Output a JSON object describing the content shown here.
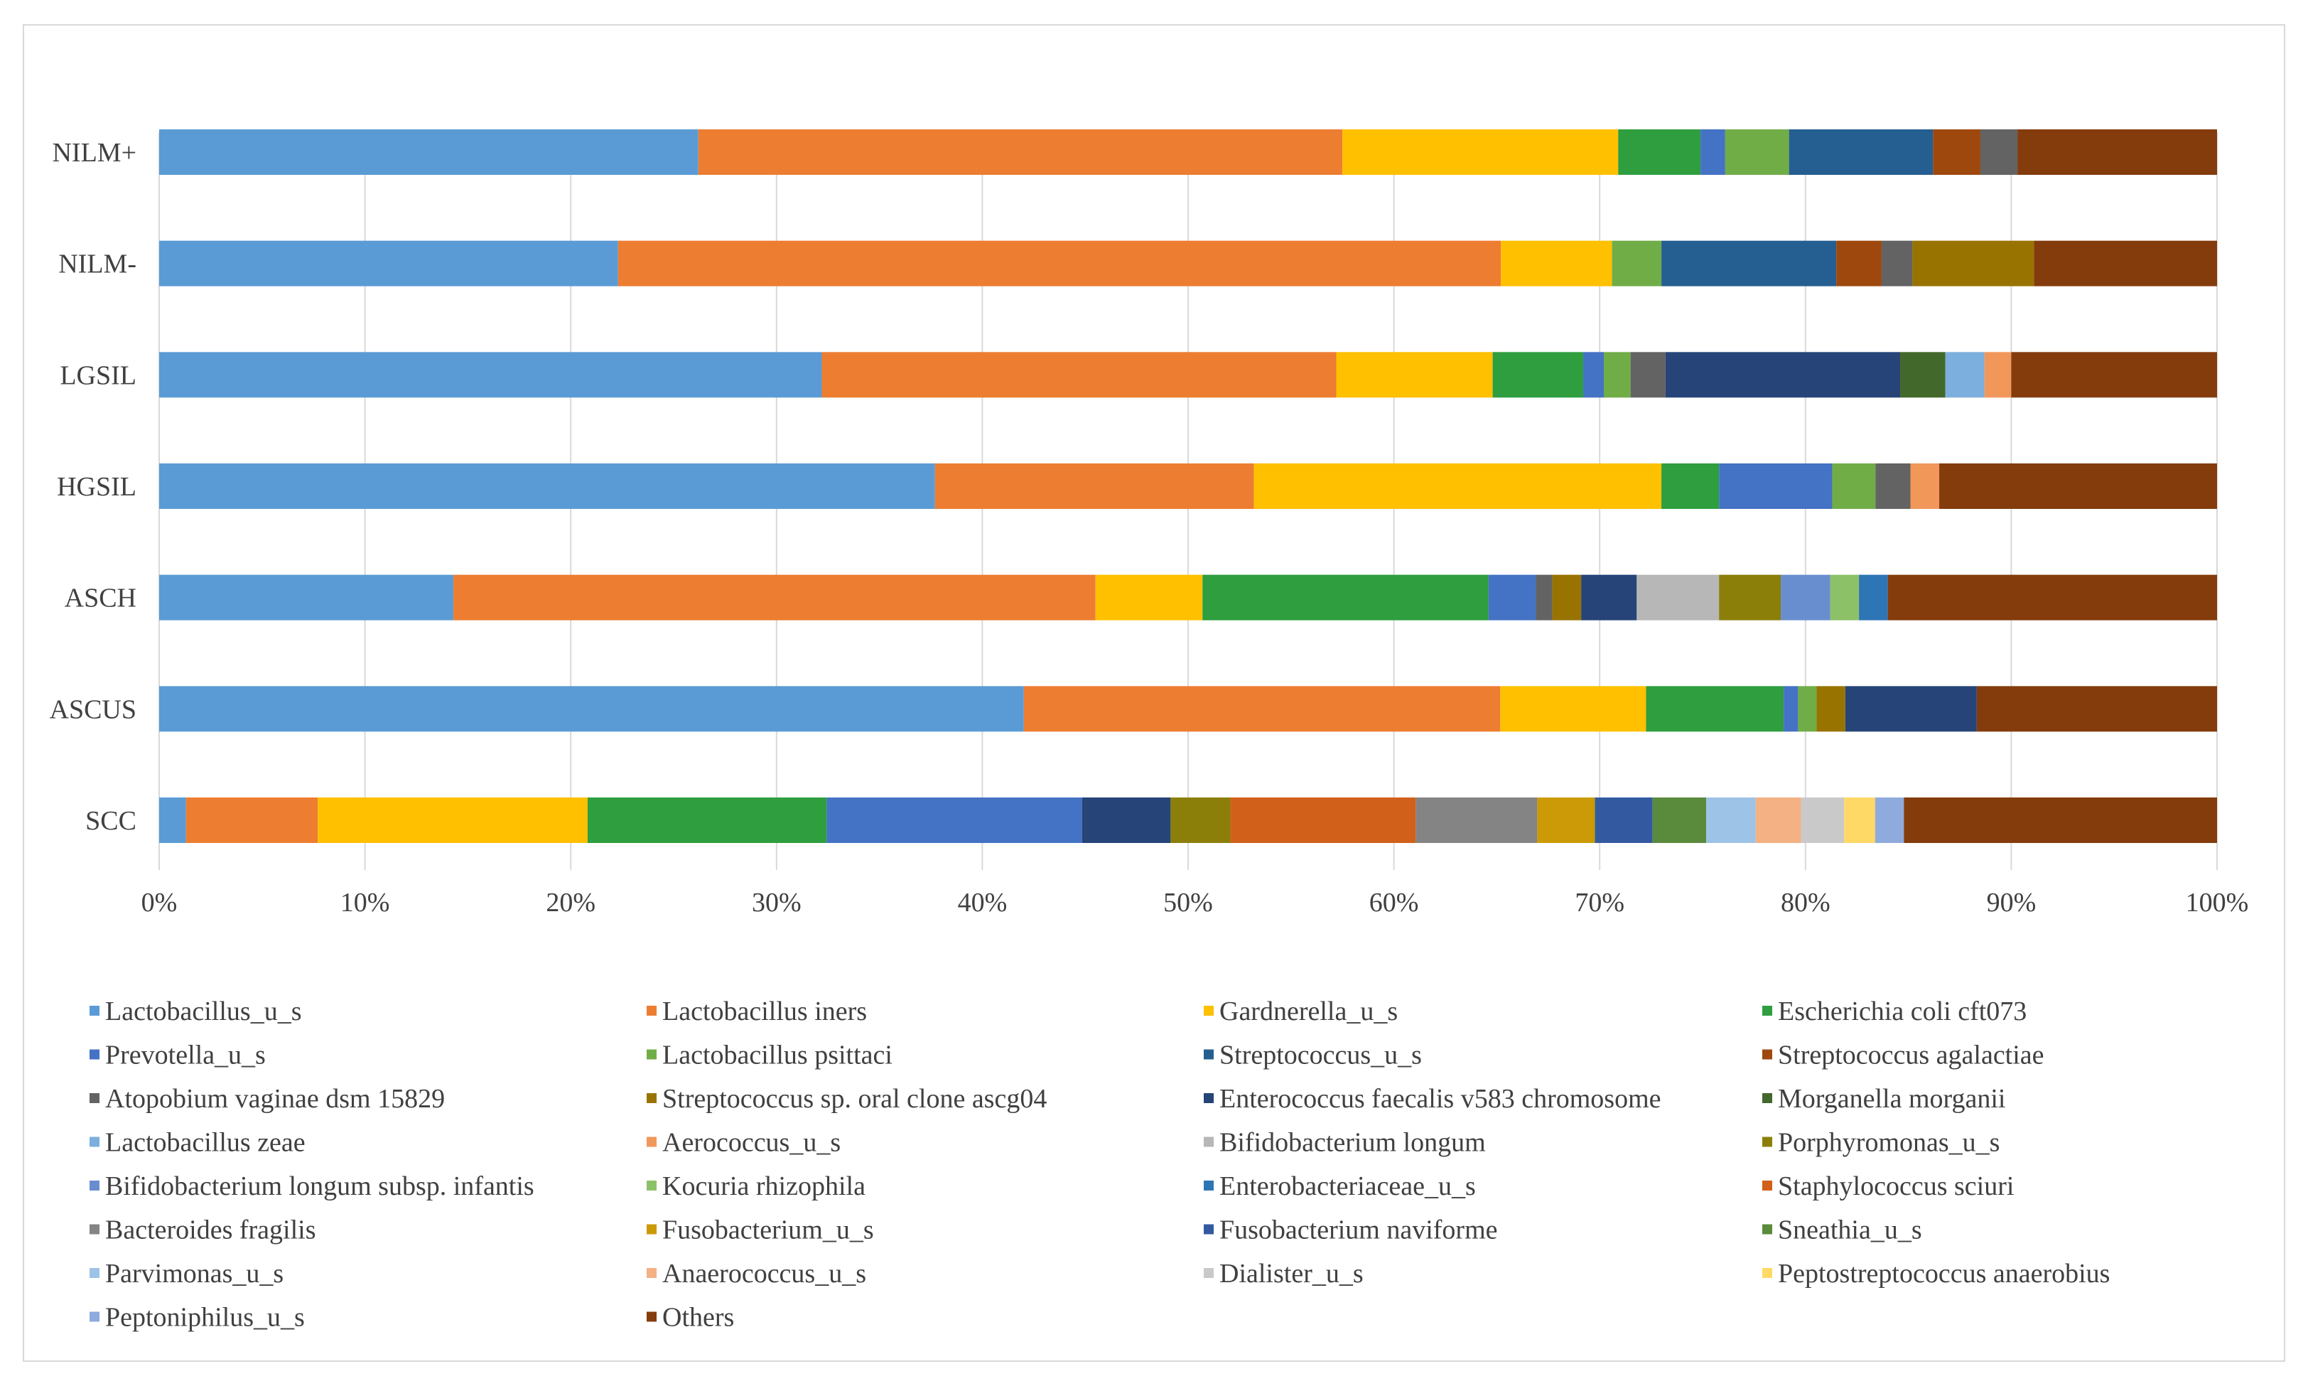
{
  "chart_data": {
    "type": "bar",
    "orientation": "horizontal",
    "stacked": "percent",
    "title": "",
    "xlabel": "",
    "ylabel": "",
    "xlim": [
      0,
      100
    ],
    "x_ticks": [
      "0%",
      "10%",
      "20%",
      "30%",
      "40%",
      "50%",
      "60%",
      "70%",
      "80%",
      "90%",
      "100%"
    ],
    "grid": true,
    "legend_position": "bottom",
    "categories": [
      "NILM+",
      "NILM-",
      "LGSIL",
      "HGSIL",
      "ASCH",
      "ASCUS",
      "SCC"
    ],
    "series": [
      {
        "name": "Lactobacillus_u_s",
        "color": "#5b9bd5",
        "values": [
          26.2,
          22.3,
          32.2,
          37.7,
          14.3,
          42.1,
          1.3
        ]
      },
      {
        "name": "Lactobacillus iners",
        "color": "#ed7d31",
        "values": [
          31.3,
          42.9,
          25.0,
          15.5,
          31.2,
          23.2,
          6.4
        ]
      },
      {
        "name": "Gardnerella_u_s",
        "color": "#ffc000",
        "values": [
          13.4,
          5.4,
          7.6,
          19.8,
          5.2,
          7.1,
          13.1
        ]
      },
      {
        "name": "Escherichia coli cft073",
        "color": "#2e9e3f",
        "values": [
          4.0,
          0.0,
          4.4,
          2.8,
          13.9,
          6.7,
          11.6
        ]
      },
      {
        "name": "Prevotella_u_s",
        "color": "#4472c4",
        "values": [
          1.2,
          0.0,
          1.0,
          5.5,
          2.3,
          0.7,
          12.4
        ]
      },
      {
        "name": "Lactobacillus psittaci",
        "color": "#70ad47",
        "values": [
          3.1,
          2.4,
          1.3,
          2.1,
          0.0,
          0.9,
          0.0
        ]
      },
      {
        "name": "Streptococcus_u_s",
        "color": "#255e91",
        "values": [
          7.0,
          8.5,
          0.0,
          0.0,
          0.0,
          0.0,
          0.0
        ]
      },
      {
        "name": "Streptococcus agalactiae",
        "color": "#9e480e",
        "values": [
          2.3,
          2.2,
          0.0,
          0.0,
          0.0,
          0.0,
          0.0
        ]
      },
      {
        "name": "Atopobium vaginae dsm 15829",
        "color": "#636363",
        "values": [
          1.8,
          1.5,
          1.7,
          1.7,
          0.8,
          0.0,
          0.0
        ]
      },
      {
        "name": "Streptococcus sp. oral clone ascg04",
        "color": "#997300",
        "values": [
          0.0,
          5.9,
          0.0,
          0.0,
          1.4,
          1.4,
          0.0
        ]
      },
      {
        "name": "Enterococcus faecalis v583 chromosome",
        "color": "#264478",
        "values": [
          0.0,
          0.0,
          11.4,
          0.0,
          2.7,
          6.4,
          4.3
        ]
      },
      {
        "name": "Morganella morganii",
        "color": "#43682b",
        "values": [
          0.0,
          0.0,
          2.2,
          0.0,
          0.0,
          0.0,
          0.0
        ]
      },
      {
        "name": "Lactobacillus zeae",
        "color": "#7cafdd",
        "values": [
          0.0,
          0.0,
          1.9,
          0.0,
          0.0,
          0.0,
          0.0
        ]
      },
      {
        "name": "Aerococcus_u_s",
        "color": "#f1975a",
        "values": [
          0.0,
          0.0,
          1.3,
          1.4,
          0.0,
          0.0,
          0.0
        ]
      },
      {
        "name": "Bifidobacterium longum",
        "color": "#b7b7b7",
        "values": [
          0.0,
          0.0,
          0.0,
          0.0,
          4.0,
          0.0,
          0.0
        ]
      },
      {
        "name": "Porphyromonas_u_s",
        "color": "#8b7f0a",
        "values": [
          0.0,
          0.0,
          0.0,
          0.0,
          3.0,
          0.0,
          2.9
        ]
      },
      {
        "name": "Bifidobacterium longum subsp. infantis",
        "color": "#698ed0",
        "values": [
          0.0,
          0.0,
          0.0,
          0.0,
          2.4,
          0.0,
          0.0
        ]
      },
      {
        "name": "Kocuria rhizophila",
        "color": "#8cc168",
        "values": [
          0.0,
          0.0,
          0.0,
          0.0,
          1.4,
          0.0,
          0.0
        ]
      },
      {
        "name": "Enterobacteriaceae_u_s",
        "color": "#2e75b6",
        "values": [
          0.0,
          0.0,
          0.0,
          0.0,
          1.4,
          0.0,
          0.0
        ]
      },
      {
        "name": "Staphylococcus sciuri",
        "color": "#d1601a",
        "values": [
          0.0,
          0.0,
          0.0,
          0.0,
          0.0,
          0.0,
          9.0
        ]
      },
      {
        "name": "Bacteroides fragilis",
        "color": "#848484",
        "values": [
          0.0,
          0.0,
          0.0,
          0.0,
          0.0,
          0.0,
          5.9
        ]
      },
      {
        "name": "Fusobacterium_u_s",
        "color": "#cc9a06",
        "values": [
          0.0,
          0.0,
          0.0,
          0.0,
          0.0,
          0.0,
          2.8
        ]
      },
      {
        "name": "Fusobacterium naviforme",
        "color": "#335aa1",
        "values": [
          0.0,
          0.0,
          0.0,
          0.0,
          0.0,
          0.0,
          2.8
        ]
      },
      {
        "name": "Sneathia_u_s",
        "color": "#5a8a3c",
        "values": [
          0.0,
          0.0,
          0.0,
          0.0,
          0.0,
          0.0,
          2.6
        ]
      },
      {
        "name": "Parvimonas_u_s",
        "color": "#9dc3e6",
        "values": [
          0.0,
          0.0,
          0.0,
          0.0,
          0.0,
          0.0,
          2.4
        ]
      },
      {
        "name": "Anaerococcus_u_s",
        "color": "#f4b183",
        "values": [
          0.0,
          0.0,
          0.0,
          0.0,
          0.0,
          0.0,
          2.2
        ]
      },
      {
        "name": "Dialister_u_s",
        "color": "#c9c9c9",
        "values": [
          0.0,
          0.0,
          0.0,
          0.0,
          0.0,
          0.0,
          2.1
        ]
      },
      {
        "name": "Peptostreptococcus anaerobius",
        "color": "#ffd966",
        "values": [
          0.0,
          0.0,
          0.0,
          0.0,
          0.0,
          0.0,
          1.5
        ]
      },
      {
        "name": "Peptoniphilus_u_s",
        "color": "#8faadc",
        "values": [
          0.0,
          0.0,
          0.0,
          0.0,
          0.0,
          0.0,
          1.4
        ]
      },
      {
        "name": "Others",
        "color": "#843c0c",
        "values": [
          9.7,
          8.9,
          10.0,
          13.5,
          16.0,
          11.7,
          15.2
        ]
      }
    ]
  }
}
